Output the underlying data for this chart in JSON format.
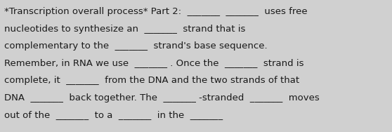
{
  "background_color": "#d0d0d0",
  "text_color": "#1a1a1a",
  "font_size": 9.5,
  "font_family": "DejaVu Sans",
  "lines": [
    "*Transcription overall process* Part 2:  _______  _______  uses free",
    "nucleotides to synthesize an  _______  strand that is",
    "complementary to the  _______  strand's base sequence.",
    "Remember, in RNA we use  _______ . Once the  _______  strand is",
    "complete, it  _______  from the DNA and the two strands of that",
    "DNA  _______  back together. The  _______ -stranded  _______  moves",
    "out of the  _______  to a  _______  in the  _______"
  ]
}
